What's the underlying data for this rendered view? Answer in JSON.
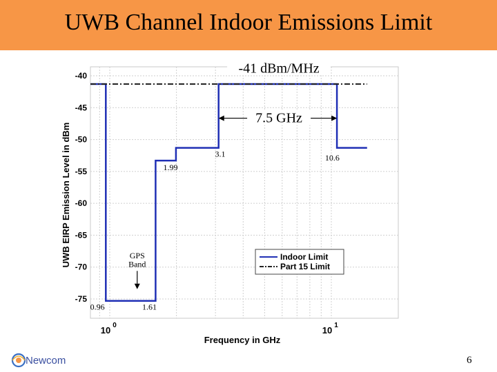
{
  "slide": {
    "title": "UWB Channel Indoor Emissions Limit",
    "page_number": "6",
    "logo_text": "Newcom",
    "colors": {
      "title_bar": "#f79646",
      "indoor": "#1f2fb5",
      "part15": "#222222"
    }
  },
  "chart_data": {
    "type": "line",
    "title": "",
    "xlabel": "Frequency in GHz",
    "ylabel": "UWB EIRP Emission Level in dBm",
    "x_scale": "log",
    "xlim": [
      0.6,
      14.5
    ],
    "ylim": [
      -77,
      -39
    ],
    "y_ticks": [
      -40,
      -45,
      -50,
      -55,
      -60,
      -65,
      -70,
      -75
    ],
    "y_tick_labels": [
      "-40",
      "-45",
      "-50",
      "-55",
      "-60",
      "-65",
      "-70",
      "-75"
    ],
    "x_ticks": [
      1,
      10
    ],
    "x_tick_labels": [
      {
        "base": "10",
        "exp": "0"
      },
      {
        "base": "10",
        "exp": "1"
      }
    ],
    "grid": true,
    "legend": {
      "position": "bottom-right"
    },
    "series": [
      {
        "name": "Indoor Limit",
        "style": "solid",
        "color": "#1f2fb5",
        "x": [
          0.6,
          0.96,
          0.96,
          1.61,
          1.61,
          1.99,
          1.99,
          3.1,
          3.1,
          10.6,
          10.6,
          14.5
        ],
        "y": [
          -41.3,
          -41.3,
          -75.3,
          -75.3,
          -53.3,
          -53.3,
          -51.3,
          -51.3,
          -41.3,
          -41.3,
          -51.3,
          -51.3
        ]
      },
      {
        "name": "Part 15 Limit",
        "style": "dashdot",
        "color": "#222222",
        "x": [
          0.6,
          14.5
        ],
        "y": [
          -41.3,
          -41.3
        ]
      }
    ],
    "annotations": [
      {
        "id": "emission",
        "text": "-41 dBm/MHz",
        "x": 5.8,
        "y": -39.5
      },
      {
        "id": "bandwidth",
        "text": "7.5 GHz",
        "x": 5.8,
        "y": -47.3
      },
      {
        "id": "f310",
        "text": "3.1",
        "x": 3.15,
        "y": -52.7
      },
      {
        "id": "f1060",
        "text": "10.6",
        "x": 10.1,
        "y": -53.3
      },
      {
        "id": "f199",
        "text": "1.99",
        "x": 1.88,
        "y": -54.8
      },
      {
        "id": "gps1",
        "text": "GPS",
        "x": 1.33,
        "y": -68.6
      },
      {
        "id": "gps2",
        "text": "Band",
        "x": 1.33,
        "y": -70.0
      },
      {
        "id": "f096",
        "text": "0.96",
        "x": 0.88,
        "y": -76.7
      },
      {
        "id": "f161",
        "text": "1.61",
        "x": 1.51,
        "y": -76.7
      }
    ]
  }
}
